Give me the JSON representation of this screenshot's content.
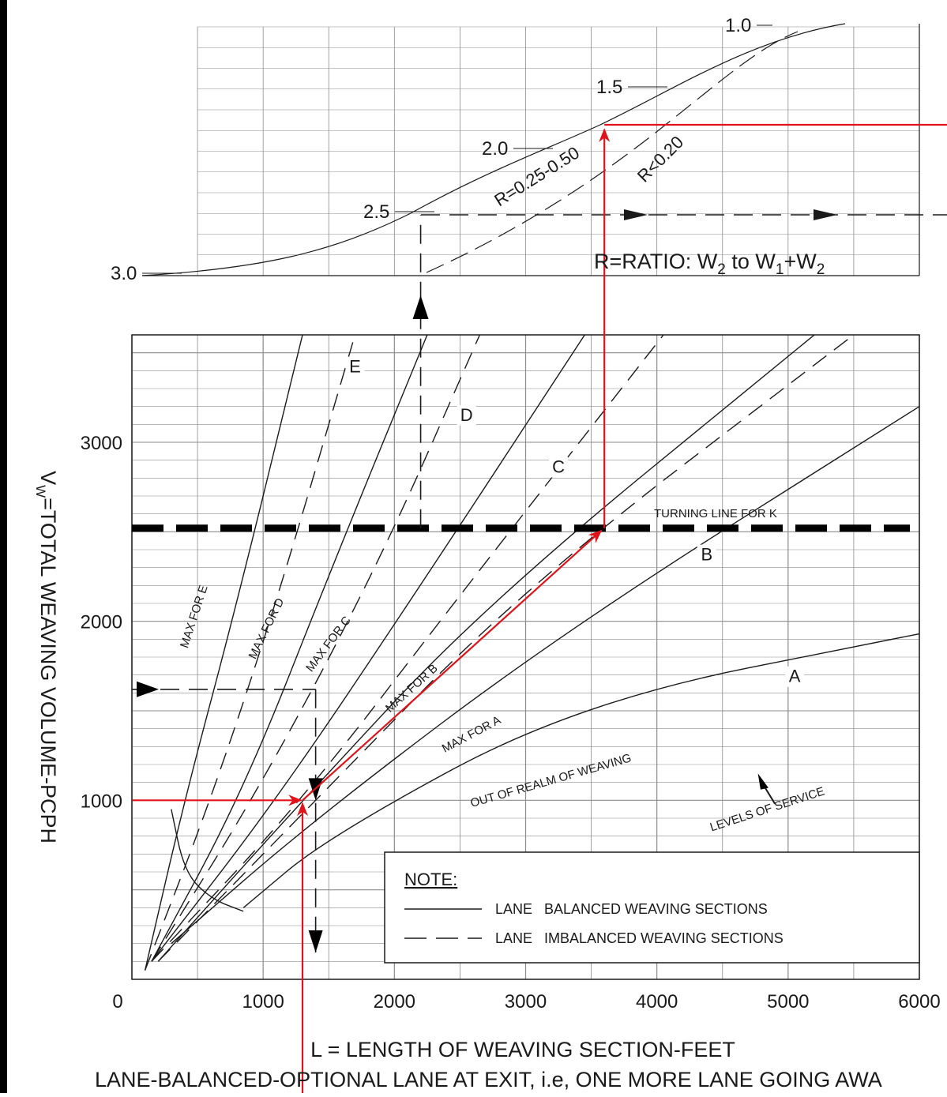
{
  "chart_data": {
    "type": "line",
    "xlabel": "L = LENGTH OF WEAVING SECTION-FEET",
    "ylabel": "Vₖ=TOTAL WEAVING VOLUME-PCPH",
    "ylabel_main": "V",
    "ylabel_sub": "W",
    "ylabel_rest": "=TOTAL WEAVING VOLUME-PCPH",
    "footer": "LANE-BALANCED-OPTIONAL LANE AT EXIT, i.e, ONE MORE LANE GOING AWA",
    "xlim": [
      0,
      6000
    ],
    "ylim": [
      0,
      3600
    ],
    "x_ticks": [
      {
        "value": 0,
        "label": "0"
      },
      {
        "value": 1000,
        "label": "1000"
      },
      {
        "value": 2000,
        "label": "2000"
      },
      {
        "value": 3000,
        "label": "3000"
      },
      {
        "value": 4000,
        "label": "4000"
      },
      {
        "value": 5000,
        "label": "5000"
      },
      {
        "value": 6000,
        "label": "6000"
      }
    ],
    "y_ticks": [
      {
        "value": 1000,
        "label": "1000"
      },
      {
        "value": 2000,
        "label": "2000"
      },
      {
        "value": 3000,
        "label": "3000"
      }
    ],
    "grid": true,
    "series": [
      {
        "style": "solid",
        "points": [
          [
            100,
            50
          ],
          [
            400,
            1000
          ],
          [
            800,
            2100
          ],
          [
            1300,
            3600
          ]
        ]
      },
      {
        "style": "dashed",
        "points": [
          [
            100,
            50
          ],
          [
            600,
            1000
          ],
          [
            1100,
            2100
          ],
          [
            1700,
            3600
          ]
        ]
      },
      {
        "style": "solid",
        "points": [
          [
            150,
            100
          ],
          [
            850,
            1050
          ],
          [
            1550,
            2350
          ],
          [
            2250,
            3600
          ]
        ]
      },
      {
        "style": "dashed",
        "points": [
          [
            150,
            100
          ],
          [
            1000,
            1100
          ],
          [
            1900,
            2350
          ],
          [
            2650,
            3600
          ]
        ]
      },
      {
        "style": "solid",
        "points": [
          [
            150,
            100
          ],
          [
            1100,
            1000
          ],
          [
            2200,
            2200
          ],
          [
            3450,
            3600
          ]
        ]
      },
      {
        "style": "dashed",
        "points": [
          [
            150,
            100
          ],
          [
            1300,
            1000
          ],
          [
            2450,
            2100
          ],
          [
            4050,
            3600
          ]
        ]
      },
      {
        "style": "solid",
        "points": [
          [
            200,
            100
          ],
          [
            1300,
            1000
          ],
          [
            2700,
            2100
          ],
          [
            5200,
            3600
          ]
        ]
      },
      {
        "style": "dashed",
        "points": [
          [
            200,
            100
          ],
          [
            1400,
            1000
          ],
          [
            3000,
            2200
          ],
          [
            5500,
            3600
          ]
        ]
      },
      {
        "style": "solid",
        "points": [
          [
            300,
            200
          ],
          [
            1400,
            900
          ],
          [
            3300,
            1950
          ],
          [
            6000,
            3200
          ]
        ]
      },
      {
        "style": "solid",
        "points": [
          [
            850,
            400
          ],
          [
            1500,
            800
          ],
          [
            3400,
            1550
          ],
          [
            6000,
            1930
          ]
        ]
      },
      {
        "style": "solid",
        "points": [
          [
            300,
            950
          ],
          [
            400,
            600
          ],
          [
            600,
            450
          ],
          [
            850,
            380
          ]
        ]
      }
    ],
    "curve_labels": [
      {
        "text": "MAX FOR E",
        "x": 500,
        "y": 2020,
        "angle": -72
      },
      {
        "text": "MAX FOR D",
        "x": 1050,
        "y": 1950,
        "angle": -64
      },
      {
        "text": "MAX FOR C",
        "x": 1520,
        "y": 1860,
        "angle": -53
      },
      {
        "text": "MAX FOR B",
        "x": 2150,
        "y": 1610,
        "angle": -42
      },
      {
        "text": "MAX FOR A",
        "x": 2600,
        "y": 1350,
        "angle": -28
      },
      {
        "text": "OUT OF REALM OF WEAVING",
        "x": 3200,
        "y": 1090,
        "angle": -16
      },
      {
        "text": "LEVELS OF SERVICE",
        "x": 4850,
        "y": 930,
        "angle": -18
      }
    ],
    "los_labels": [
      {
        "text": "E",
        "x": 1700,
        "y": 3390
      },
      {
        "text": "D",
        "x": 2550,
        "y": 3120
      },
      {
        "text": "C",
        "x": 3250,
        "y": 2830
      },
      {
        "text": "B",
        "x": 4380,
        "y": 2340
      },
      {
        "text": "A",
        "x": 5050,
        "y": 1660
      }
    ],
    "turning_line": {
      "y": 2520,
      "label": "TURNING LINE FOR K"
    },
    "r_scale": {
      "values": [
        {
          "value": 3.0,
          "label": "3.0"
        },
        {
          "value": 2.5,
          "label": "2.5"
        },
        {
          "value": 2.0,
          "label": "2.0"
        },
        {
          "value": 1.5,
          "label": "1.5"
        },
        {
          "value": 1.0,
          "label": "1.0"
        }
      ],
      "curve_labels": [
        "R=0.25-0.50",
        "R<0.20"
      ],
      "ratio_label_prefix": "R=RATIO: W",
      "ratio_label_sub1": "2",
      "ratio_label_mid": " to W",
      "ratio_label_sub2": "1",
      "ratio_label_plus": "+W",
      "ratio_label_sub3": "2"
    },
    "note": {
      "title": "NOTE:",
      "items": [
        {
          "style": "solid",
          "text": "LANE   BALANCED WEAVING SECTIONS"
        },
        {
          "style": "dashed",
          "text": "LANE   IMBALANCED WEAVING SECTIONS"
        }
      ]
    },
    "example_path": {
      "points": [
        [
          1300,
          0
        ],
        [
          1300,
          1000
        ],
        [
          3600,
          2520
        ],
        [
          3600,
          4120
        ]
      ]
    },
    "example_dashed_path": {
      "points": [
        [
          0,
          1620
        ],
        [
          1400,
          1620
        ],
        [
          1400,
          1000
        ],
        [
          1400,
          150
        ]
      ],
      "x_top": 2200
    },
    "colors": {
      "highlight": "#e0131a",
      "ink": "#1a1a1a",
      "grid": "#8c8c8c"
    }
  }
}
